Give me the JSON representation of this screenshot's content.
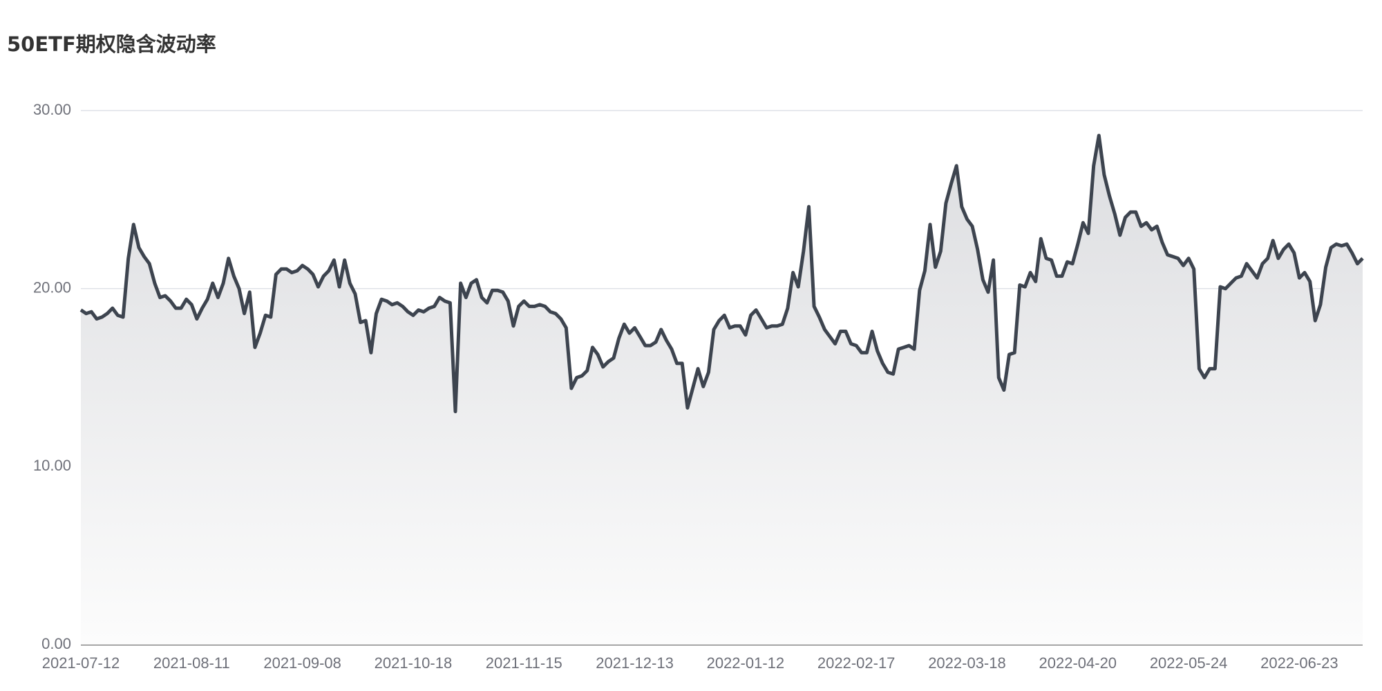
{
  "chart_data": {
    "type": "line",
    "title": "50ETF期权隐含波动率",
    "categories": [
      "2021-07-12",
      null,
      null,
      null,
      null,
      null,
      null,
      null,
      null,
      null,
      null,
      null,
      null,
      null,
      null,
      null,
      null,
      null,
      null,
      null,
      null,
      "2021-08-11",
      null,
      null,
      null,
      null,
      null,
      null,
      null,
      null,
      null,
      null,
      null,
      null,
      null,
      null,
      null,
      null,
      null,
      null,
      null,
      null,
      "2021-09-08",
      null,
      null,
      null,
      null,
      null,
      null,
      null,
      null,
      null,
      null,
      null,
      null,
      null,
      null,
      null,
      null,
      null,
      null,
      null,
      null,
      "2021-10-18",
      null,
      null,
      null,
      null,
      null,
      null,
      null,
      null,
      null,
      null,
      null,
      null,
      null,
      null,
      null,
      null,
      null,
      null,
      null,
      null,
      "2021-11-15",
      null,
      null,
      null,
      null,
      null,
      null,
      null,
      null,
      null,
      null,
      null,
      null,
      null,
      null,
      null,
      null,
      null,
      null,
      null,
      null,
      "2021-12-13",
      null,
      null,
      null,
      null,
      null,
      null,
      null,
      null,
      null,
      null,
      null,
      null,
      null,
      null,
      null,
      null,
      null,
      null,
      null,
      null,
      "2022-01-12",
      null,
      null,
      null,
      null,
      null,
      null,
      null,
      null,
      null,
      null,
      null,
      null,
      null,
      null,
      null,
      null,
      null,
      null,
      null,
      null,
      "2022-02-17",
      null,
      null,
      null,
      null,
      null,
      null,
      null,
      null,
      null,
      null,
      null,
      null,
      null,
      null,
      null,
      null,
      null,
      null,
      null,
      null,
      "2022-03-18",
      null,
      null,
      null,
      null,
      null,
      null,
      null,
      null,
      null,
      null,
      null,
      null,
      null,
      null,
      null,
      null,
      null,
      null,
      null,
      null,
      "2022-04-20",
      null,
      null,
      null,
      null,
      null,
      null,
      null,
      null,
      null,
      null,
      null,
      null,
      null,
      null,
      null,
      null,
      null,
      null,
      null,
      null,
      "2022-05-24",
      null,
      null,
      null,
      null,
      null,
      null,
      null,
      null,
      null,
      null,
      null,
      null,
      null,
      null,
      null,
      null,
      null,
      null,
      null,
      null,
      "2022-06-23",
      null,
      null,
      null,
      null,
      null,
      null,
      null,
      null,
      null,
      null,
      null,
      null
    ],
    "values": [
      18.8,
      18.6,
      18.7,
      18.3,
      18.4,
      18.6,
      18.9,
      18.5,
      18.4,
      21.7,
      23.6,
      22.3,
      21.8,
      21.4,
      20.3,
      19.5,
      19.6,
      19.3,
      18.9,
      18.9,
      19.4,
      19.1,
      18.3,
      18.9,
      19.4,
      20.3,
      19.5,
      20.3,
      21.7,
      20.7,
      20.0,
      18.6,
      19.8,
      16.7,
      17.5,
      18.5,
      18.4,
      20.8,
      21.1,
      21.1,
      20.9,
      21.0,
      21.3,
      21.1,
      20.8,
      20.1,
      20.7,
      21.0,
      21.6,
      20.1,
      21.6,
      20.3,
      19.7,
      18.1,
      18.2,
      16.4,
      18.6,
      19.4,
      19.3,
      19.1,
      19.2,
      19.0,
      18.7,
      18.5,
      18.8,
      18.7,
      18.9,
      19.0,
      19.5,
      19.3,
      19.2,
      13.1,
      20.3,
      19.5,
      20.3,
      20.5,
      19.5,
      19.2,
      19.9,
      19.9,
      19.8,
      19.3,
      17.9,
      19.0,
      19.3,
      19.0,
      19.0,
      19.1,
      19.0,
      18.7,
      18.6,
      18.3,
      17.8,
      14.4,
      15.0,
      15.1,
      15.4,
      16.7,
      16.3,
      15.6,
      15.9,
      16.1,
      17.2,
      18.0,
      17.5,
      17.8,
      17.3,
      16.8,
      16.8,
      17.0,
      17.7,
      17.1,
      16.6,
      15.8,
      15.8,
      13.3,
      14.4,
      15.5,
      14.5,
      15.3,
      17.7,
      18.2,
      18.5,
      17.8,
      17.9,
      17.9,
      17.4,
      18.5,
      18.8,
      18.3,
      17.8,
      17.9,
      17.9,
      18.0,
      18.9,
      20.9,
      20.1,
      22.1,
      24.6,
      19.0,
      18.4,
      17.7,
      17.3,
      16.9,
      17.6,
      17.6,
      16.9,
      16.8,
      16.4,
      16.4,
      17.6,
      16.5,
      15.8,
      15.3,
      15.2,
      16.6,
      16.7,
      16.8,
      16.6,
      19.9,
      21.0,
      23.6,
      21.2,
      22.1,
      24.8,
      25.9,
      26.9,
      24.6,
      23.9,
      23.5,
      22.2,
      20.5,
      19.8,
      21.6,
      15.0,
      14.3,
      16.3,
      16.4,
      20.2,
      20.1,
      20.9,
      20.4,
      22.8,
      21.7,
      21.6,
      20.7,
      20.7,
      21.5,
      21.4,
      22.5,
      23.7,
      23.1,
      26.9,
      28.6,
      26.4,
      25.2,
      24.2,
      23.0,
      24.0,
      24.3,
      24.3,
      23.5,
      23.7,
      23.3,
      23.5,
      22.6,
      21.9,
      21.8,
      21.7,
      21.3,
      21.7,
      21.1,
      15.5,
      15.0,
      15.5,
      15.5,
      20.1,
      20.0,
      20.3,
      20.6,
      20.7,
      21.4,
      21.0,
      20.6,
      21.4,
      21.7,
      22.7,
      21.7,
      22.2,
      22.5,
      22.0,
      20.6,
      20.9,
      20.4,
      18.2,
      19.1,
      21.2,
      22.3,
      22.5,
      22.4,
      22.5,
      22.0,
      21.4,
      21.7
    ],
    "color": "#3d444f",
    "ylim": [
      0,
      30
    ],
    "yticks": [
      {
        "value": 0,
        "label": "0.00"
      },
      {
        "value": 10,
        "label": "10.00"
      },
      {
        "value": 20,
        "label": "20.00"
      },
      {
        "value": 30,
        "label": "30.00"
      }
    ],
    "grid": true
  }
}
